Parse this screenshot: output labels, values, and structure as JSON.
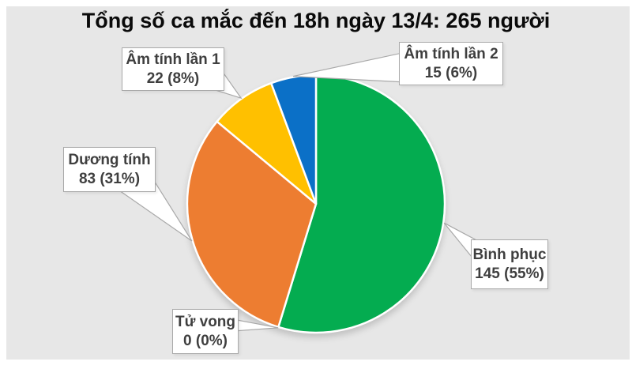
{
  "title": "Tổng số ca mắc đến 18h ngày 13/4: 265 người",
  "colors": {
    "background": "#E7E7E7",
    "frame": "#FFFFFF",
    "title_text": "#0A0A0A",
    "callout_text": "#3F3F3F",
    "callout_border": "#A9A9A9",
    "callout_bg": "#FFFFFF",
    "slice_divider": "#FFFFFF"
  },
  "chart_data": {
    "type": "pie",
    "title": "Tổng số ca mắc đến 18h ngày 13/4: 265 người",
    "total": 265,
    "total_label": "265 người",
    "start_angle_deg": 0,
    "direction": "clockwise",
    "legend_position": "callouts",
    "slices": [
      {
        "label": "Bình phục",
        "value": 145,
        "percent": 55,
        "color": "#04AC50"
      },
      {
        "label": "Tử vong",
        "value": 0,
        "percent": 0,
        "color": null
      },
      {
        "label": "Dương tính",
        "value": 83,
        "percent": 31,
        "color": "#ED7D31"
      },
      {
        "label": "Âm tính lần 1",
        "value": 22,
        "percent": 8,
        "color": "#FFC000"
      },
      {
        "label": "Âm tính lần 2",
        "value": 15,
        "percent": 6,
        "color": "#0B70C7"
      }
    ]
  },
  "callouts": {
    "binh_phuc": {
      "line1": "Bình phục",
      "line2": "145 (55%)"
    },
    "tu_vong": {
      "line1": "Tử vong",
      "line2": "0 (0%)"
    },
    "duong_tinh": {
      "line1": "Dương tính",
      "line2": "83 (31%)"
    },
    "am_tinh_lan_1": {
      "line1": "Âm tính lần 1",
      "line2": "22 (8%)"
    },
    "am_tinh_lan_2": {
      "line1": "Âm tính lần 2",
      "line2": "15 (6%)"
    }
  }
}
